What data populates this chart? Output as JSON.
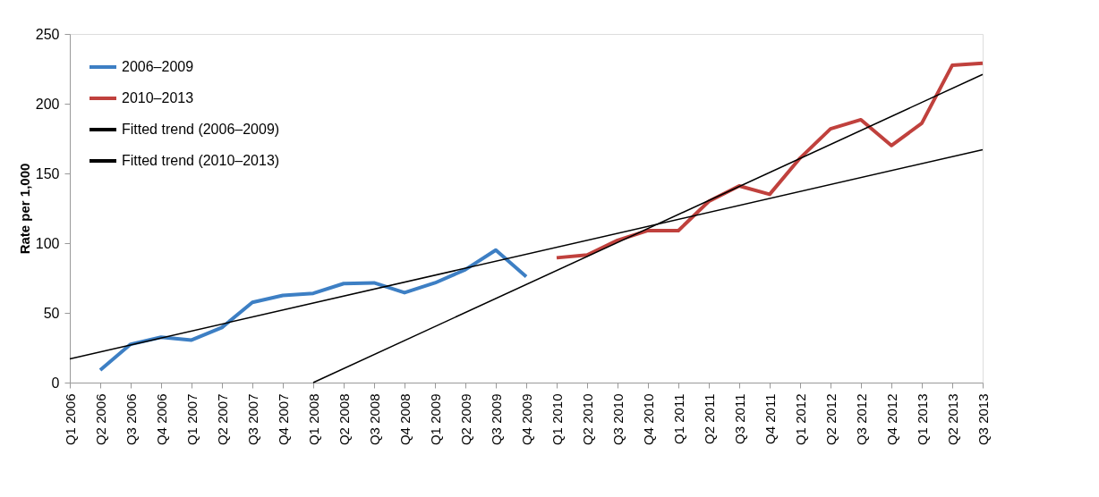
{
  "chart_data": {
    "type": "line",
    "ylabel": "Rate per 1,000",
    "categories": [
      "Q1 2006",
      "Q2 2006",
      "Q3 2006",
      "Q4 2006",
      "Q1 2007",
      "Q2 2007",
      "Q3 2007",
      "Q4 2007",
      "Q1 2008",
      "Q2 2008",
      "Q3 2008",
      "Q4 2008",
      "Q1 2009",
      "Q2 2009",
      "Q3 2009",
      "Q4 2009",
      "Q1 2010",
      "Q2 2010",
      "Q3 2010",
      "Q4 2010",
      "Q1 2011",
      "Q2 2011",
      "Q3 2011",
      "Q4 2011",
      "Q1 2012",
      "Q2 2012",
      "Q3 2012",
      "Q4 2012",
      "Q1 2013",
      "Q2 2013",
      "Q3 2013"
    ],
    "series": [
      {
        "name": "2006–2009",
        "color": "#3d7fc4",
        "values": [
          null,
          9,
          27.5,
          32.5,
          30.5,
          39.5,
          57.5,
          62.5,
          64,
          71,
          71.5,
          64.5,
          71.5,
          81,
          95,
          76,
          null,
          null,
          null,
          null,
          null,
          null,
          null,
          null,
          null,
          null,
          null,
          null,
          null,
          null,
          null
        ]
      },
      {
        "name": "2010–2013",
        "color": "#c0413d",
        "values": [
          null,
          null,
          null,
          null,
          null,
          null,
          null,
          null,
          null,
          null,
          null,
          null,
          null,
          null,
          null,
          null,
          89.5,
          91.5,
          102,
          109,
          109,
          130,
          141,
          135,
          161,
          182,
          188.5,
          170,
          186,
          227.5,
          229
        ]
      },
      {
        "name": "Fitted trend (2006–2009)",
        "color": "#000000",
        "type": "line",
        "x": [
          "Q1 2006",
          "Q3 2013"
        ],
        "values": [
          17,
          167
        ]
      },
      {
        "name": "Fitted trend (2010–2013)",
        "color": "#000000",
        "type": "line",
        "x": [
          "Q1 2008",
          "Q3 2013"
        ],
        "values": [
          0,
          221
        ]
      }
    ],
    "ylim": [
      0,
      250
    ],
    "yticks": [
      0,
      50,
      100,
      150,
      200,
      250
    ],
    "grid": false,
    "legend": "top left",
    "marker": "none",
    "line_style": "solid"
  }
}
